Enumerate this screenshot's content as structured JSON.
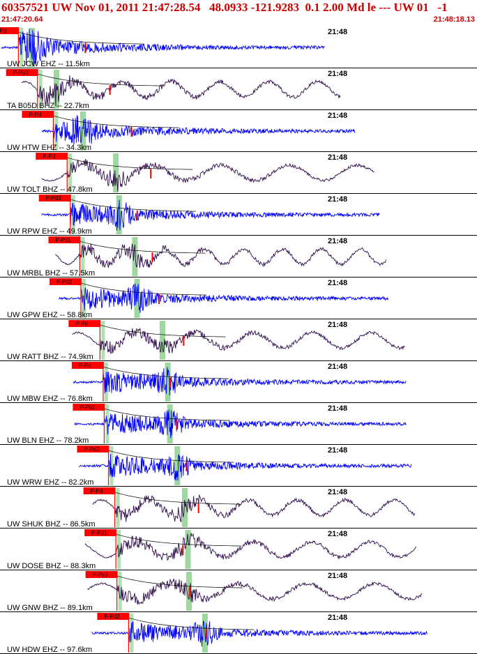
{
  "header": {
    "title": "60357521 UW Nov 01, 2011 21:47:28.54   48.0933 -121.9283  0.1 2.00 Md le --- UW 01   -1",
    "time_start": "21:47:20.64",
    "time_end": "21:48:18.13"
  },
  "colors": {
    "header_text": "#cc0000",
    "trace_ehz": "#0000ff",
    "trace_bhz": "#2e0a4a",
    "pick_box": "#ff0000",
    "green_band": "#9fd89f",
    "coda_curve": "#000000",
    "separator": "#000000"
  },
  "chart_data": {
    "type": "line",
    "title": "60357521 UW Nov 01, 2011 21:47:28.54   48.0933 -121.9283  0.1 2.00 Md le --- UW 01   -1",
    "time_range": [
      "21:47:20.64",
      "21:48:18.13"
    ],
    "minute_label": "21:48",
    "series": [
      {
        "name": "UW JCW EHZ -- 11.5km",
        "label": "UW JCW EHZ -- 11.5km",
        "component": "EHZ",
        "distance_km": 11.5,
        "pick": "P-Pd",
        "pick_time_s": 1.6,
        "s_time_s": 2.9,
        "amplitude_marks": 1,
        "trace_start_s": 0.0,
        "trace_end_s": 30.5
      },
      {
        "name": "TA B05D BHZ -- 22.7km",
        "label": "TA B05D BHZ -- 22.7km",
        "component": "BHZ",
        "distance_km": 22.7,
        "pick": "P-Pd2",
        "pick_time_s": 3.4,
        "s_time_s": 5.2,
        "amplitude_marks": 1,
        "trace_start_s": 1.9,
        "trace_end_s": 32.0
      },
      {
        "name": "UW HTW EHZ -- 34.3km",
        "label": "UW HTW EHZ -- 34.3km",
        "component": "EHZ",
        "distance_km": 34.3,
        "pick": "P-Pd",
        "pick_time_s": 4.9,
        "s_time_s": 7.7,
        "amplitude_marks": 1,
        "trace_start_s": 3.8,
        "trace_end_s": 33.4
      },
      {
        "name": "UW TOLT BHZ -- 47.8km",
        "label": "UW TOLT BHZ -- 47.8km",
        "component": "BHZ",
        "distance_km": 47.8,
        "pick": "P-Pd",
        "pick_time_s": 6.2,
        "s_time_s": 10.8,
        "amplitude_marks": 1,
        "trace_start_s": 3.8,
        "trace_end_s": 35.2
      },
      {
        "name": "UW RPW EHZ -- 49.9km",
        "label": "UW RPW EHZ -- 49.9km",
        "component": "EHZ",
        "distance_km": 49.9,
        "pick": "P-Pd2",
        "pick_time_s": 6.5,
        "s_time_s": 11.1,
        "amplitude_marks": 1,
        "trace_start_s": 3.8,
        "trace_end_s": 35.7
      },
      {
        "name": "UW MRBL BHZ -- 57.5km",
        "label": "UW MRBL BHZ -- 57.5km",
        "component": "BHZ",
        "distance_km": 57.5,
        "pick": "P-Pd1",
        "pick_time_s": 7.4,
        "s_time_s": 12.6,
        "amplitude_marks": 1,
        "trace_start_s": 5.1,
        "trace_end_s": 36.3
      },
      {
        "name": "UW GPW EHZ -- 58.8km",
        "label": "UW GPW EHZ -- 58.8km",
        "component": "EHZ",
        "distance_km": 58.8,
        "pick": "P-Pd2",
        "pick_time_s": 7.5,
        "s_time_s": 12.8,
        "amplitude_marks": 1,
        "trace_start_s": 5.4,
        "trace_end_s": 36.5
      },
      {
        "name": "UW RATT BHZ -- 74.9km",
        "label": "UW RATT BHZ -- 74.9km",
        "component": "BHZ",
        "distance_km": 74.9,
        "pick": "P-Pd",
        "pick_time_s": 9.3,
        "s_time_s": 15.2,
        "amplitude_marks": 1,
        "trace_start_s": 6.7,
        "trace_end_s": 38.1
      },
      {
        "name": "UW MBW EHZ -- 76.8km",
        "label": "UW MBW EHZ -- 76.8km",
        "component": "EHZ",
        "distance_km": 76.8,
        "pick": "P-Pd",
        "pick_time_s": 9.6,
        "s_time_s": 15.7,
        "amplitude_marks": 1,
        "trace_start_s": 6.8,
        "trace_end_s": 38.2
      },
      {
        "name": "UW BLN EHZ -- 78.2km",
        "label": "UW BLN EHZ -- 78.2km",
        "component": "EHZ",
        "distance_km": 78.2,
        "pick": "P-Pd2",
        "pick_time_s": 9.7,
        "s_time_s": 15.9,
        "amplitude_marks": 1,
        "trace_start_s": 6.9,
        "trace_end_s": 38.2
      },
      {
        "name": "UW WRW EHZ -- 82.2km",
        "label": "UW WRW EHZ -- 82.2km",
        "component": "EHZ",
        "distance_km": 82.2,
        "pick": "P-Pd2",
        "pick_time_s": 10.1,
        "s_time_s": 16.6,
        "amplitude_marks": 1,
        "trace_start_s": 7.3,
        "trace_end_s": 38.7
      },
      {
        "name": "UW SHUK BHZ -- 86.5km",
        "label": "UW SHUK BHZ -- 86.5km",
        "component": "BHZ",
        "distance_km": 86.5,
        "pick": "P-Pd",
        "pick_time_s": 10.7,
        "s_time_s": 17.3,
        "amplitude_marks": 1,
        "trace_start_s": 8.6,
        "trace_end_s": 39.0
      },
      {
        "name": "UW DOSE BHZ -- 88.3km",
        "label": "UW DOSE BHZ -- 88.3km",
        "component": "BHZ",
        "distance_km": 88.3,
        "pick": "P-Pd1",
        "pick_time_s": 10.8,
        "s_time_s": 17.6,
        "amplitude_marks": 1,
        "trace_start_s": 7.9,
        "trace_end_s": 39.2
      },
      {
        "name": "UW GNW BHZ -- 89.1km",
        "label": "UW GNW BHZ -- 89.1km",
        "component": "BHZ",
        "distance_km": 89.1,
        "pick": "P-Pd2",
        "pick_time_s": 10.9,
        "s_time_s": 17.7,
        "amplitude_marks": 1,
        "trace_start_s": 8.1,
        "trace_end_s": 39.7
      },
      {
        "name": "UW HDW EHZ -- 97.6km",
        "label": "UW HDW EHZ -- 97.6km",
        "component": "EHZ",
        "distance_km": 97.6,
        "pick": "P-Pd2",
        "pick_time_s": 12.0,
        "s_time_s": 19.2,
        "amplitude_marks": 1,
        "trace_start_s": 8.5,
        "trace_end_s": 40.2
      }
    ]
  }
}
